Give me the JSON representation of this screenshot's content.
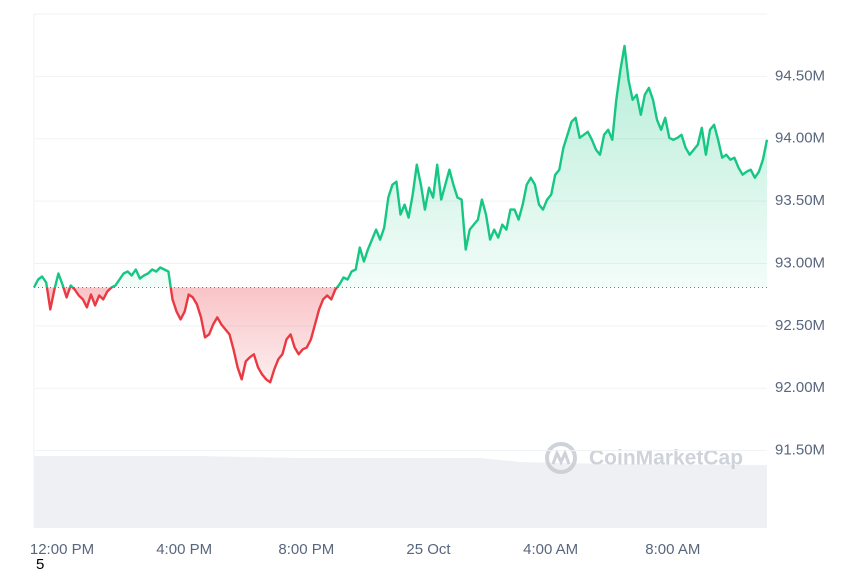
{
  "chart_data": {
    "type": "line",
    "watermark": "CoinMarketCap",
    "corner_label": "5",
    "x": [
      -55,
      -47,
      -39,
      -31,
      -23,
      -15,
      -7,
      1,
      9,
      17,
      25,
      33,
      41,
      49,
      57,
      65,
      73,
      81,
      89,
      97,
      105,
      113,
      121,
      129,
      137,
      145,
      153,
      161,
      169,
      177,
      185,
      193,
      201,
      209,
      217,
      225,
      233,
      241,
      249,
      257,
      265,
      273,
      281,
      289,
      297,
      305,
      313,
      321,
      329,
      337,
      345,
      353,
      361,
      369,
      377,
      385,
      393,
      401,
      409,
      417,
      425,
      433,
      441,
      449,
      457,
      465,
      473,
      481,
      489,
      497,
      505,
      513,
      521,
      529,
      537,
      545,
      553,
      561,
      569,
      577,
      585,
      593,
      601,
      609,
      617,
      625,
      633,
      641,
      649,
      657,
      665,
      673,
      681,
      689,
      697,
      705,
      713,
      721,
      729,
      737,
      745,
      753,
      761,
      769,
      777,
      785,
      793,
      801,
      809,
      817,
      825,
      833,
      841,
      849,
      857,
      865,
      873,
      881,
      889,
      897,
      905,
      913,
      921,
      929,
      937,
      945,
      953,
      961,
      969,
      977,
      985,
      993,
      1001,
      1009,
      1017,
      1025,
      1033,
      1041,
      1049,
      1057,
      1065,
      1073,
      1081,
      1089,
      1097,
      1105,
      1113,
      1121,
      1129,
      1137,
      1145,
      1153,
      1161,
      1169,
      1177,
      1185,
      1193,
      1201,
      1209,
      1217,
      1225,
      1233,
      1241,
      1249,
      1257,
      1265,
      1273,
      1281,
      1289,
      1297,
      1305,
      1313,
      1321,
      1329,
      1337,
      1345,
      1353,
      1361,
      1369,
      1377,
      1385
    ],
    "values": [
      92808000,
      92872000,
      92896000,
      92848000,
      92632000,
      92792000,
      92920000,
      92832000,
      92728000,
      92824000,
      92792000,
      92744000,
      92712000,
      92648000,
      92752000,
      92664000,
      92744000,
      92712000,
      92776000,
      92808000,
      92824000,
      92872000,
      92920000,
      92936000,
      92904000,
      92952000,
      92880000,
      92904000,
      92920000,
      92952000,
      92936000,
      92968000,
      92952000,
      92936000,
      92712000,
      92616000,
      92552000,
      92616000,
      92752000,
      92728000,
      92672000,
      92568000,
      92408000,
      92432000,
      92512000,
      92568000,
      92512000,
      92472000,
      92432000,
      92312000,
      92168000,
      92072000,
      92216000,
      92248000,
      92272000,
      92168000,
      92112000,
      92072000,
      92048000,
      92152000,
      92232000,
      92272000,
      92392000,
      92432000,
      92328000,
      92272000,
      92312000,
      92328000,
      92392000,
      92512000,
      92632000,
      92712000,
      92744000,
      92712000,
      92792000,
      92832000,
      92888000,
      92872000,
      92936000,
      92952000,
      93128000,
      93016000,
      93112000,
      93192000,
      93272000,
      93192000,
      93288000,
      93528000,
      93632000,
      93656000,
      93392000,
      93472000,
      93368000,
      93552000,
      93792000,
      93632000,
      93432000,
      93608000,
      93528000,
      93792000,
      93512000,
      93632000,
      93752000,
      93632000,
      93528000,
      93512000,
      93112000,
      93272000,
      93312000,
      93352000,
      93512000,
      93392000,
      93192000,
      93272000,
      93208000,
      93312000,
      93272000,
      93432000,
      93432000,
      93352000,
      93472000,
      93632000,
      93688000,
      93632000,
      93472000,
      93432000,
      93512000,
      93552000,
      93712000,
      93752000,
      93928000,
      94032000,
      94136000,
      94168000,
      94008000,
      94032000,
      94056000,
      93992000,
      93912000,
      93872000,
      94032000,
      94072000,
      93992000,
      94312000,
      94552000,
      94744000,
      94472000,
      94312000,
      94352000,
      94192000,
      94352000,
      94408000,
      94312000,
      94152000,
      94072000,
      94168000,
      94008000,
      93992000,
      94008000,
      94032000,
      93928000,
      93872000,
      93912000,
      93952000,
      94088000,
      93872000,
      94072000,
      94112000,
      93992000,
      93848000,
      93872000,
      93832000,
      93848000,
      93768000,
      93712000,
      93736000,
      93752000,
      93688000,
      93736000,
      93832000,
      93992000
    ],
    "baseline": 92808000,
    "color_up": "#16c784",
    "color_down": "#ea3943",
    "xlim": [
      -55,
      1385
    ],
    "xticks": [
      {
        "value": 0,
        "label": "12:00 PM"
      },
      {
        "value": 240,
        "label": "4:00 PM"
      },
      {
        "value": 480,
        "label": "8:00 PM"
      },
      {
        "value": 720,
        "label": "25 Oct"
      },
      {
        "value": 960,
        "label": "4:00 AM"
      },
      {
        "value": 1200,
        "label": "8:00 AM"
      }
    ],
    "ylim": [
      90880000,
      95000000
    ],
    "yticks": [
      {
        "value": 91500000,
        "label": "91.50M"
      },
      {
        "value": 92000000,
        "label": "92.00M"
      },
      {
        "value": 92500000,
        "label": "92.50M"
      },
      {
        "value": 93000000,
        "label": "93.00M"
      },
      {
        "value": 93500000,
        "label": "93.50M"
      },
      {
        "value": 94000000,
        "label": "94.00M"
      },
      {
        "value": 94500000,
        "label": "94.50M"
      }
    ],
    "grid": true
  }
}
